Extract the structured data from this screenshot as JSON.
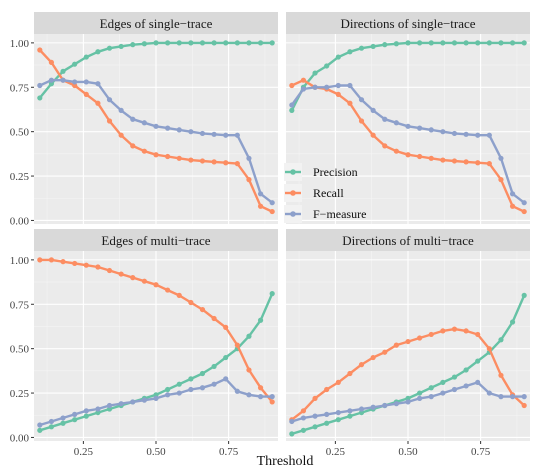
{
  "chart_data": {
    "type": "line",
    "xlabel": "Threshold",
    "ylabel": "",
    "xlim": [
      0.08,
      0.92
    ],
    "ylim": [
      -0.02,
      1.05
    ],
    "xticks": [
      "0.25",
      "0.50",
      "0.75"
    ],
    "yticks": [
      "0.00",
      "0.25",
      "0.50",
      "0.75",
      "1.00"
    ],
    "x": [
      0.1,
      0.14,
      0.18,
      0.22,
      0.26,
      0.3,
      0.34,
      0.38,
      0.42,
      0.46,
      0.5,
      0.54,
      0.58,
      0.62,
      0.66,
      0.7,
      0.74,
      0.78,
      0.82,
      0.86,
      0.9
    ],
    "legend": {
      "placement": "right-center",
      "entries": [
        {
          "name": "Precision",
          "color": "#66C2A5"
        },
        {
          "name": "Recall",
          "color": "#FC8D62"
        },
        {
          "name": "F−measure",
          "color": "#8DA0CB"
        }
      ]
    },
    "panels": [
      {
        "title": "Edges of single−trace",
        "series": [
          {
            "name": "Precision",
            "values": [
              0.69,
              0.77,
              0.84,
              0.88,
              0.92,
              0.95,
              0.97,
              0.98,
              0.99,
              0.995,
              1.0,
              1.0,
              1.0,
              1.0,
              1.0,
              1.0,
              1.0,
              1.0,
              1.0,
              1.0,
              1.0
            ]
          },
          {
            "name": "Recall",
            "values": [
              0.96,
              0.89,
              0.79,
              0.76,
              0.71,
              0.66,
              0.56,
              0.48,
              0.42,
              0.39,
              0.37,
              0.36,
              0.35,
              0.34,
              0.335,
              0.33,
              0.325,
              0.32,
              0.23,
              0.08,
              0.05
            ]
          },
          {
            "name": "F−measure",
            "values": [
              0.76,
              0.79,
              0.79,
              0.78,
              0.78,
              0.77,
              0.68,
              0.62,
              0.57,
              0.55,
              0.53,
              0.52,
              0.51,
              0.5,
              0.49,
              0.485,
              0.48,
              0.48,
              0.35,
              0.15,
              0.1
            ]
          }
        ]
      },
      {
        "title": "Directions of single−trace",
        "series": [
          {
            "name": "Precision",
            "values": [
              0.62,
              0.75,
              0.83,
              0.87,
              0.92,
              0.95,
              0.97,
              0.98,
              0.99,
              0.995,
              1.0,
              1.0,
              1.0,
              1.0,
              1.0,
              1.0,
              1.0,
              1.0,
              1.0,
              1.0,
              1.0
            ]
          },
          {
            "name": "Recall",
            "values": [
              0.76,
              0.79,
              0.75,
              0.74,
              0.71,
              0.66,
              0.56,
              0.48,
              0.42,
              0.39,
              0.37,
              0.36,
              0.35,
              0.34,
              0.335,
              0.33,
              0.325,
              0.32,
              0.23,
              0.08,
              0.05
            ]
          },
          {
            "name": "F−measure",
            "values": [
              0.65,
              0.74,
              0.75,
              0.75,
              0.76,
              0.76,
              0.68,
              0.62,
              0.57,
              0.55,
              0.53,
              0.52,
              0.51,
              0.5,
              0.49,
              0.485,
              0.48,
              0.48,
              0.35,
              0.15,
              0.1
            ]
          }
        ]
      },
      {
        "title": "Edges of multi−trace",
        "series": [
          {
            "name": "Precision",
            "values": [
              0.04,
              0.06,
              0.08,
              0.1,
              0.12,
              0.14,
              0.16,
              0.18,
              0.2,
              0.22,
              0.24,
              0.27,
              0.3,
              0.33,
              0.36,
              0.4,
              0.45,
              0.5,
              0.57,
              0.66,
              0.81
            ]
          },
          {
            "name": "Recall",
            "values": [
              1.0,
              1.0,
              0.99,
              0.98,
              0.97,
              0.96,
              0.94,
              0.92,
              0.9,
              0.88,
              0.86,
              0.83,
              0.8,
              0.76,
              0.72,
              0.67,
              0.62,
              0.52,
              0.38,
              0.28,
              0.2
            ]
          },
          {
            "name": "F−measure",
            "values": [
              0.07,
              0.09,
              0.11,
              0.13,
              0.15,
              0.16,
              0.18,
              0.19,
              0.2,
              0.21,
              0.22,
              0.24,
              0.25,
              0.27,
              0.28,
              0.3,
              0.33,
              0.26,
              0.24,
              0.23,
              0.23
            ]
          }
        ]
      },
      {
        "title": "Directions of multi−trace",
        "series": [
          {
            "name": "Precision",
            "values": [
              0.02,
              0.04,
              0.06,
              0.08,
              0.1,
              0.12,
              0.14,
              0.16,
              0.18,
              0.2,
              0.22,
              0.25,
              0.28,
              0.31,
              0.34,
              0.38,
              0.43,
              0.48,
              0.55,
              0.65,
              0.8
            ]
          },
          {
            "name": "Recall",
            "values": [
              0.1,
              0.15,
              0.22,
              0.27,
              0.31,
              0.36,
              0.41,
              0.45,
              0.48,
              0.52,
              0.54,
              0.56,
              0.58,
              0.6,
              0.61,
              0.6,
              0.58,
              0.5,
              0.35,
              0.24,
              0.18
            ]
          },
          {
            "name": "F−measure",
            "values": [
              0.09,
              0.11,
              0.12,
              0.13,
              0.14,
              0.15,
              0.16,
              0.17,
              0.18,
              0.19,
              0.2,
              0.22,
              0.23,
              0.25,
              0.27,
              0.29,
              0.31,
              0.25,
              0.23,
              0.23,
              0.23
            ]
          }
        ]
      }
    ]
  }
}
